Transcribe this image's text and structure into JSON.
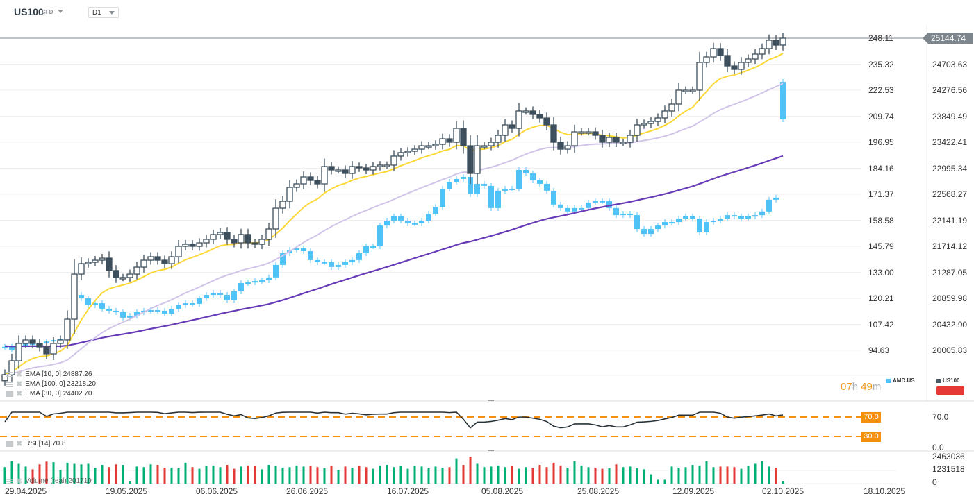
{
  "header": {
    "symbol": "US100",
    "symbol_type": "CFD",
    "timeframe": "D1"
  },
  "legend": {
    "ema10": "EMA [10, 0] 24887.26",
    "ema100": "EMA [100, 0] 23218.20",
    "ema30": "EMA [30, 0] 24402.70",
    "rsi": "RSI [14] 70.8",
    "volume": "Volume (real) 201719",
    "countdown_h": "07",
    "countdown_h_unit": "h",
    "countdown_m": "49",
    "countdown_m_unit": "m",
    "series_amd": "AMD.US",
    "series_us100": "US100"
  },
  "colors": {
    "us100": "#3d4f5c",
    "amd": "#4fc3f7",
    "ema10": "#fdd835",
    "ema30": "#d1c4e9",
    "ema100": "#673ab7",
    "rsi_level": "#f5900f",
    "vol_up": "#00b074",
    "vol_down": "#e53935"
  },
  "axes": {
    "amd_ticks": [
      "248.11",
      "235.32",
      "222.53",
      "209.74",
      "196.95",
      "184.16",
      "171.37",
      "158.58",
      "145.79",
      "133.00",
      "120.21",
      "107.42",
      "94.63"
    ],
    "us100_ticks": [
      "24703.63",
      "24276.56",
      "23849.49",
      "23422.41",
      "22995.34",
      "22568.27",
      "22141.19",
      "21714.12",
      "21287.05",
      "20859.98",
      "20432.90",
      "20005.83"
    ],
    "last_price": "25144.74",
    "rsi_ticks": [
      "70.0",
      "0.0"
    ],
    "rsi_levels": [
      "70.0",
      "30.0"
    ],
    "volume_ticks": [
      "2463036",
      "1231518",
      "0"
    ],
    "dates": [
      "29.04.2025",
      "19.05.2025",
      "06.06.2025",
      "26.06.2025",
      "16.07.2025",
      "05.08.2025",
      "25.08.2025",
      "12.09.2025",
      "02.10.2025",
      "18.10.2025"
    ]
  },
  "chart_data": {
    "type": "candlestick",
    "x_range": [
      "24.04.2025",
      "02.10.2025"
    ],
    "series": [
      {
        "name": "US100",
        "axis": "right",
        "ylim": [
          20005.83,
          25144.74
        ],
        "close": [
          19622,
          19849,
          20134,
          20191,
          20134,
          20077,
          19963,
          20134,
          20191,
          20532,
          21272,
          21443,
          21466,
          21500,
          21534,
          21330,
          21216,
          21216,
          21272,
          21386,
          21500,
          21557,
          21500,
          21443,
          21557,
          21728,
          21762,
          21728,
          21785,
          21842,
          21922,
          21956,
          21842,
          21785,
          21922,
          21785,
          21762,
          21842,
          22013,
          22354,
          22468,
          22696,
          22753,
          22867,
          22810,
          22753,
          23038,
          22981,
          22981,
          22924,
          23038,
          23015,
          22981,
          23038,
          23061,
          23061,
          23209,
          23266,
          23288,
          23322,
          23379,
          23379,
          23402,
          23493,
          23436,
          23664,
          23379,
          22924,
          23379,
          23379,
          23436,
          23550,
          23721,
          23664,
          23949,
          23949,
          23892,
          23835,
          23721,
          23436,
          23322,
          23379,
          23607,
          23607,
          23607,
          23550,
          23436,
          23516,
          23436,
          23436,
          23550,
          23721,
          23744,
          23778,
          23835,
          23949,
          24063,
          24291,
          24291,
          24291,
          24746,
          24837,
          24974,
          24860,
          24689,
          24632,
          24746,
          24803,
          24883,
          24974,
          25111,
          25031,
          25145
        ]
      },
      {
        "name": "AMD.US",
        "axis": "left-inner",
        "ylim": [
          94.63,
          248.11
        ],
        "close": [
          96.4,
          95.0,
          97.0,
          98.0,
          97.4,
          98.0,
          99.0,
          99.7,
          100.4,
          110.0,
          121.9,
          120.2,
          116.8,
          117.8,
          115.1,
          114.1,
          113.4,
          110.7,
          111.7,
          113.4,
          114.1,
          114.4,
          114.1,
          112.7,
          115.1,
          116.8,
          117.8,
          117.5,
          120.2,
          121.9,
          122.9,
          121.9,
          119.2,
          123.6,
          127.7,
          128.0,
          128.7,
          129.1,
          130.5,
          136.6,
          142.4,
          144.1,
          144.8,
          143.4,
          139.0,
          138.0,
          138.0,
          135.6,
          136.6,
          138.0,
          139.0,
          142.4,
          145.8,
          145.8,
          156.0,
          158.4,
          160.5,
          158.4,
          157.1,
          157.1,
          158.4,
          161.8,
          165.2,
          174.1,
          177.5,
          178.9,
          179.9,
          171.4,
          176.5,
          175.5,
          164.6,
          173.1,
          174.1,
          174.1,
          183.3,
          181.6,
          178.2,
          176.5,
          173.1,
          166.3,
          164.6,
          162.9,
          164.6,
          164.6,
          167.3,
          168.0,
          168.0,
          164.6,
          161.1,
          161.8,
          161.1,
          154.3,
          151.9,
          154.3,
          156.0,
          157.7,
          157.7,
          159.4,
          160.5,
          159.4,
          152.6,
          157.7,
          158.4,
          159.4,
          161.1,
          160.5,
          159.4,
          160.5,
          161.1,
          162.9,
          168.7,
          169.7,
          208.2
        ],
        "last_open": 226.6
      }
    ],
    "indicators": {
      "ema": [
        {
          "period": 10,
          "last": 24887.26
        },
        {
          "period": 30,
          "last": 24402.7
        },
        {
          "period": 100,
          "last": 23218.2,
          "seed": 20100
        }
      ],
      "rsi": {
        "period": 14,
        "last": 70.8,
        "levels": [
          70,
          30
        ]
      }
    },
    "volume": {
      "ylim": [
        0,
        2463036
      ],
      "values": [
        1500000,
        2050000,
        1800000,
        1550000,
        1300000,
        1750000,
        2000000,
        1950000,
        1250000,
        1900000,
        1800000,
        1750000,
        1800000,
        1400000,
        1700000,
        1500000,
        1750000,
        1700000,
        200000,
        1550000,
        1500000,
        1750000,
        1700000,
        1450000,
        1450000,
        1400000,
        1900000,
        1500000,
        1350000,
        1600000,
        1650000,
        1500000,
        1700000,
        1350000,
        1550000,
        1650000,
        1600000,
        1300000,
        1700000,
        1600000,
        1450000,
        1500000,
        1650000,
        1550000,
        1600000,
        1500000,
        1400000,
        1600000,
        1250000,
        1550000,
        1450000,
        1600000,
        1500000,
        1350000,
        1650000,
        1700000,
        1500000,
        1600000,
        1350000,
        1600000,
        1550000,
        1400000,
        1550000,
        1450000,
        1500000,
        2300000,
        1700000,
        2450000,
        1800000,
        1500000,
        1550000,
        1650000,
        1500000,
        1600000,
        1350000,
        1500000,
        1400000,
        1700000,
        1500000,
        1900000,
        1650000,
        1450000,
        2050000,
        1650000,
        1500000,
        1450000,
        1350000,
        1400000,
        1750000,
        1500000,
        1550000,
        1400000,
        1300000,
        850000,
        350000,
        350000,
        1550000,
        1450000,
        1500000,
        1700000,
        1650000,
        2050000,
        1500000,
        1550000,
        1550000,
        1500000,
        1350000,
        1600000,
        1800000,
        2050000,
        1550000,
        1450000,
        201719
      ]
    }
  }
}
